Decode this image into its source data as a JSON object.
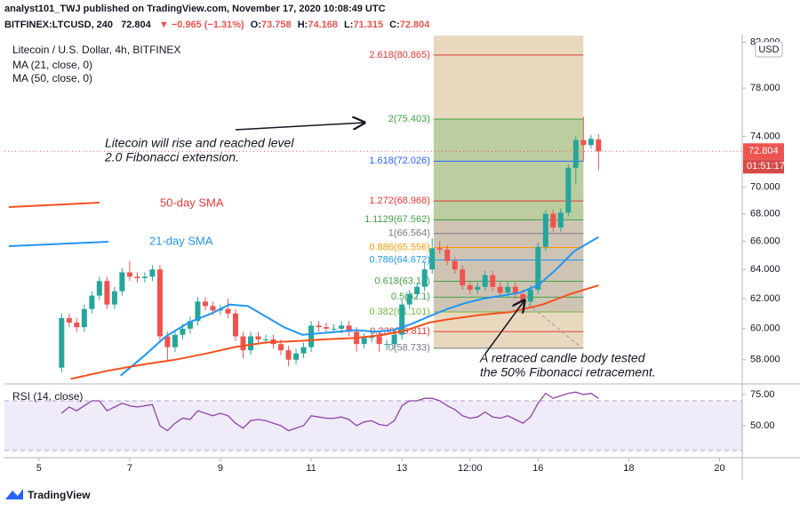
{
  "header": {
    "author_line": "analyst101_TWJ published on TradingView.com, November 17, 2020 10:08:49 UTC",
    "symbol": "BITFINEX:LTCUSD, 240",
    "change": "▼ −0.965 (−1.31%)",
    "ohlc_prefixes": [
      "O:",
      "H:",
      "L:",
      "C:"
    ],
    "currency": "USD",
    "countdown": "01:51:17",
    "brand": "TradingView"
  },
  "chart_data": [
    {
      "type": "candlestick",
      "title": "Litecoin / U.S. Dollar, 4h, BITFINEX",
      "up_color": "#26a69a",
      "down_color": "#ef5350",
      "log_scale": true,
      "x": [
        5.5,
        5.667,
        5.833,
        6,
        6.167,
        6.333,
        6.5,
        6.667,
        6.833,
        7,
        7.167,
        7.333,
        7.5,
        7.667,
        7.833,
        8,
        8.167,
        8.333,
        8.5,
        8.667,
        8.833,
        9,
        9.167,
        9.333,
        9.5,
        9.667,
        9.833,
        10,
        10.167,
        10.333,
        10.5,
        10.667,
        10.833,
        11,
        11.167,
        11.333,
        11.5,
        11.667,
        11.833,
        12,
        12.167,
        12.333,
        12.5,
        12.667,
        12.833,
        13,
        13.167,
        13.333,
        13.5,
        13.667,
        13.833,
        14,
        14.167,
        14.333,
        14.5,
        14.667,
        14.833,
        15,
        15.167,
        15.333,
        15.5,
        15.667,
        15.833,
        16,
        16.167,
        16.333,
        16.5,
        16.667,
        16.833,
        17,
        17.167,
        17.333
      ],
      "open": [
        57.5,
        60.7,
        60.4,
        60.1,
        61.3,
        62.2,
        63.2,
        61.6,
        62.5,
        63.8,
        63.5,
        63.4,
        63.5,
        64.0,
        59.5,
        58.8,
        59.6,
        60.0,
        60.5,
        61.8,
        61.5,
        61.2,
        61.3,
        61.0,
        59.5,
        58.6,
        59.5,
        59.3,
        59.3,
        59.0,
        58.6,
        58.0,
        58.4,
        58.8,
        60.2,
        60.1,
        60.0,
        60.0,
        60.2,
        59.8,
        59.0,
        59.4,
        59.5,
        59.0,
        59.0,
        59.6,
        61.6,
        62.3,
        62.8,
        64.0,
        65.5,
        65.4,
        64.6,
        64.0,
        62.9,
        62.6,
        62.8,
        63.6,
        62.8,
        62.4,
        62.8,
        62.3,
        61.8,
        62.6,
        65.6,
        68.0,
        67.0,
        68.1,
        71.5,
        73.7,
        73.3,
        73.758
      ],
      "high": [
        61.0,
        61.0,
        60.7,
        61.6,
        62.5,
        63.5,
        63.5,
        62.8,
        64.1,
        64.6,
        63.8,
        63.8,
        64.3,
        64.3,
        59.8,
        59.9,
        60.3,
        60.8,
        62.1,
        62.1,
        61.8,
        61.6,
        62.0,
        61.3,
        59.8,
        59.8,
        59.8,
        59.6,
        59.6,
        59.3,
        58.9,
        58.7,
        59.1,
        60.5,
        60.5,
        60.4,
        60.3,
        60.5,
        60.5,
        60.1,
        59.7,
        59.8,
        59.8,
        59.3,
        59.9,
        61.9,
        62.6,
        63.1,
        64.5,
        66.2,
        66.0,
        65.7,
        64.9,
        64.3,
        63.2,
        63.1,
        63.9,
        63.9,
        63.1,
        63.1,
        63.1,
        62.6,
        62.9,
        65.9,
        68.3,
        68.3,
        68.4,
        71.8,
        74.0,
        75.6,
        74.1,
        74.168
      ],
      "low": [
        57.2,
        60.1,
        59.8,
        59.8,
        61.0,
        61.9,
        61.3,
        61.3,
        62.2,
        63.2,
        63.1,
        63.1,
        63.2,
        59.2,
        58.0,
        58.5,
        59.3,
        59.7,
        60.2,
        61.2,
        60.9,
        60.9,
        60.7,
        59.2,
        58.1,
        58.3,
        59.0,
        59.0,
        58.7,
        58.3,
        57.6,
        57.7,
        58.1,
        58.5,
        59.8,
        59.7,
        59.7,
        59.7,
        59.5,
        58.5,
        58.7,
        59.1,
        58.5,
        58.6,
        58.7,
        59.3,
        61.3,
        62.0,
        62.5,
        63.7,
        65.1,
        64.3,
        63.7,
        62.6,
        62.3,
        62.3,
        62.5,
        62.5,
        62.1,
        62.1,
        62.0,
        61.0,
        61.5,
        62.3,
        65.3,
        66.7,
        66.7,
        67.8,
        70.2,
        72.0,
        73.0,
        71.315
      ],
      "close": [
        60.7,
        60.4,
        60.1,
        61.3,
        62.2,
        63.2,
        61.6,
        62.5,
        63.8,
        63.5,
        63.4,
        63.5,
        64.0,
        59.5,
        58.8,
        59.6,
        60.0,
        60.5,
        61.8,
        61.5,
        61.2,
        61.3,
        61.0,
        59.5,
        58.6,
        59.5,
        59.3,
        59.3,
        59.0,
        58.6,
        58.0,
        58.4,
        58.8,
        60.2,
        60.1,
        60.0,
        60.0,
        60.2,
        59.8,
        59.0,
        59.4,
        59.5,
        59.0,
        59.0,
        59.6,
        61.6,
        62.3,
        62.8,
        64.0,
        65.5,
        65.4,
        64.6,
        64.0,
        62.9,
        62.6,
        62.8,
        63.6,
        62.8,
        62.4,
        62.8,
        62.3,
        61.8,
        62.6,
        65.6,
        68.0,
        67.0,
        68.1,
        71.5,
        73.7,
        73.3,
        73.8,
        72.804
      ],
      "series": [
        {
          "name": "MA (21, close, 0)",
          "color": "#2196f3",
          "x": [
            6.8,
            7.3,
            7.8,
            8.3,
            8.8,
            9.2,
            9.6,
            10.0,
            10.4,
            10.8,
            11.2,
            11.6,
            12.0,
            12.4,
            12.8,
            13.2,
            13.6,
            14.0,
            14.4,
            14.8,
            15.2,
            15.6,
            16.0,
            16.4,
            16.8,
            17.333
          ],
          "values": [
            57.0,
            58.2,
            59.5,
            60.4,
            61.0,
            61.6,
            61.5,
            60.8,
            60.1,
            59.6,
            59.7,
            59.8,
            59.9,
            59.8,
            59.9,
            60.3,
            60.8,
            61.3,
            61.7,
            62.0,
            62.2,
            62.4,
            62.9,
            64.0,
            65.3,
            66.3
          ]
        },
        {
          "name": "MA (50, close, 0)",
          "color": "#f4511e",
          "x": [
            5.7,
            6.5,
            7.3,
            8.0,
            8.7,
            9.3,
            10.0,
            10.7,
            11.3,
            12.0,
            12.6,
            13.1,
            13.6,
            14.0,
            14.7,
            15.4,
            16.1,
            16.7,
            17.333
          ],
          "values": [
            56.8,
            57.3,
            57.7,
            58.0,
            58.4,
            58.8,
            59.1,
            59.2,
            59.3,
            59.4,
            59.6,
            59.9,
            60.4,
            60.6,
            60.9,
            61.1,
            61.6,
            62.3,
            62.9
          ]
        }
      ],
      "fib_range": [
        13.7,
        17.0
      ],
      "fib_levels": [
        {
          "value": 80.865,
          "label": "2.618(80.865)",
          "color": "#e53935"
        },
        {
          "value": 75.403,
          "label": "2(75.403)",
          "color": "#43a047"
        },
        {
          "value": 72.026,
          "label": "1.618(72.026)",
          "color": "#2962ff"
        },
        {
          "value": 68.968,
          "label": "1.272(68.968)",
          "color": "#e53935"
        },
        {
          "value": 67.562,
          "label": "1.1129(67.562)",
          "color": "#43a047"
        },
        {
          "value": 66.564,
          "label": "1(66.564)",
          "color": "#787b86"
        },
        {
          "value": 65.556,
          "label": "0.886(65.556)",
          "color": "#ff9800"
        },
        {
          "value": 64.672,
          "label": "0.786(64.672)",
          "color": "#2196f3"
        },
        {
          "value": 63.18,
          "label": "0.618(63.18)",
          "color": "#43a047"
        },
        {
          "value": 62.1,
          "label": "0.5(62.1)",
          "color": "#43a047"
        },
        {
          "value": 61.101,
          "label": "0.382(61.101)",
          "color": "#7cb342"
        },
        {
          "value": 59.811,
          "label": "0.236(59.811)",
          "color": "#e53935"
        },
        {
          "value": 58.733,
          "label": "0(58.733)",
          "color": "#787b86"
        }
      ],
      "annotations": [
        "Litecoin will rise and reached level",
        "2.0 Fibonacci extension.",
        "50-day SMA",
        "21-day SMA",
        "A retraced candle body tested",
        "the 50% Fibonacci retracement."
      ],
      "xlim": [
        4.24,
        20.5
      ],
      "xticks": [
        5,
        7,
        9,
        11,
        13,
        {
          "value": 14.5,
          "label": "12:00"
        },
        16,
        18,
        20
      ],
      "ylim": [
        56.6,
        82.6
      ],
      "yticks": [
        {
          "value": 58,
          "label": "58.000"
        },
        {
          "value": 60,
          "label": "60.000"
        },
        {
          "value": 62,
          "label": "62.000"
        },
        {
          "value": 64,
          "label": "64.000"
        },
        {
          "value": 66,
          "label": "66.000"
        },
        {
          "value": 68,
          "label": "68.000"
        },
        {
          "value": 70,
          "label": "70.000"
        },
        {
          "value": 74,
          "label": "74.000"
        },
        {
          "value": 78,
          "label": "78.000"
        },
        {
          "value": 82,
          "label": "82.000"
        }
      ]
    },
    {
      "type": "line",
      "title": "RSI (14, close)",
      "color": "#8e44ad",
      "values": [
        60,
        65,
        62,
        66,
        70,
        70,
        62,
        65,
        68,
        66,
        65,
        66,
        67,
        50,
        46,
        52,
        56,
        55,
        62,
        60,
        58,
        60,
        58,
        52,
        48,
        54,
        55,
        54,
        52,
        50,
        46,
        48,
        50,
        58,
        57,
        56,
        56,
        57,
        55,
        50,
        53,
        54,
        51,
        50,
        54,
        66,
        70,
        70,
        72,
        72,
        70,
        66,
        63,
        58,
        56,
        57,
        61,
        57,
        56,
        58,
        55,
        52,
        57,
        68,
        76,
        72,
        74,
        76,
        77,
        75,
        76,
        72
      ],
      "band": [
        30,
        70
      ],
      "ylim": [
        26.4,
        81.4
      ],
      "yticks": [
        {
          "value": 75,
          "label": "75.00"
        },
        {
          "value": 50,
          "label": "50.00"
        }
      ]
    }
  ]
}
